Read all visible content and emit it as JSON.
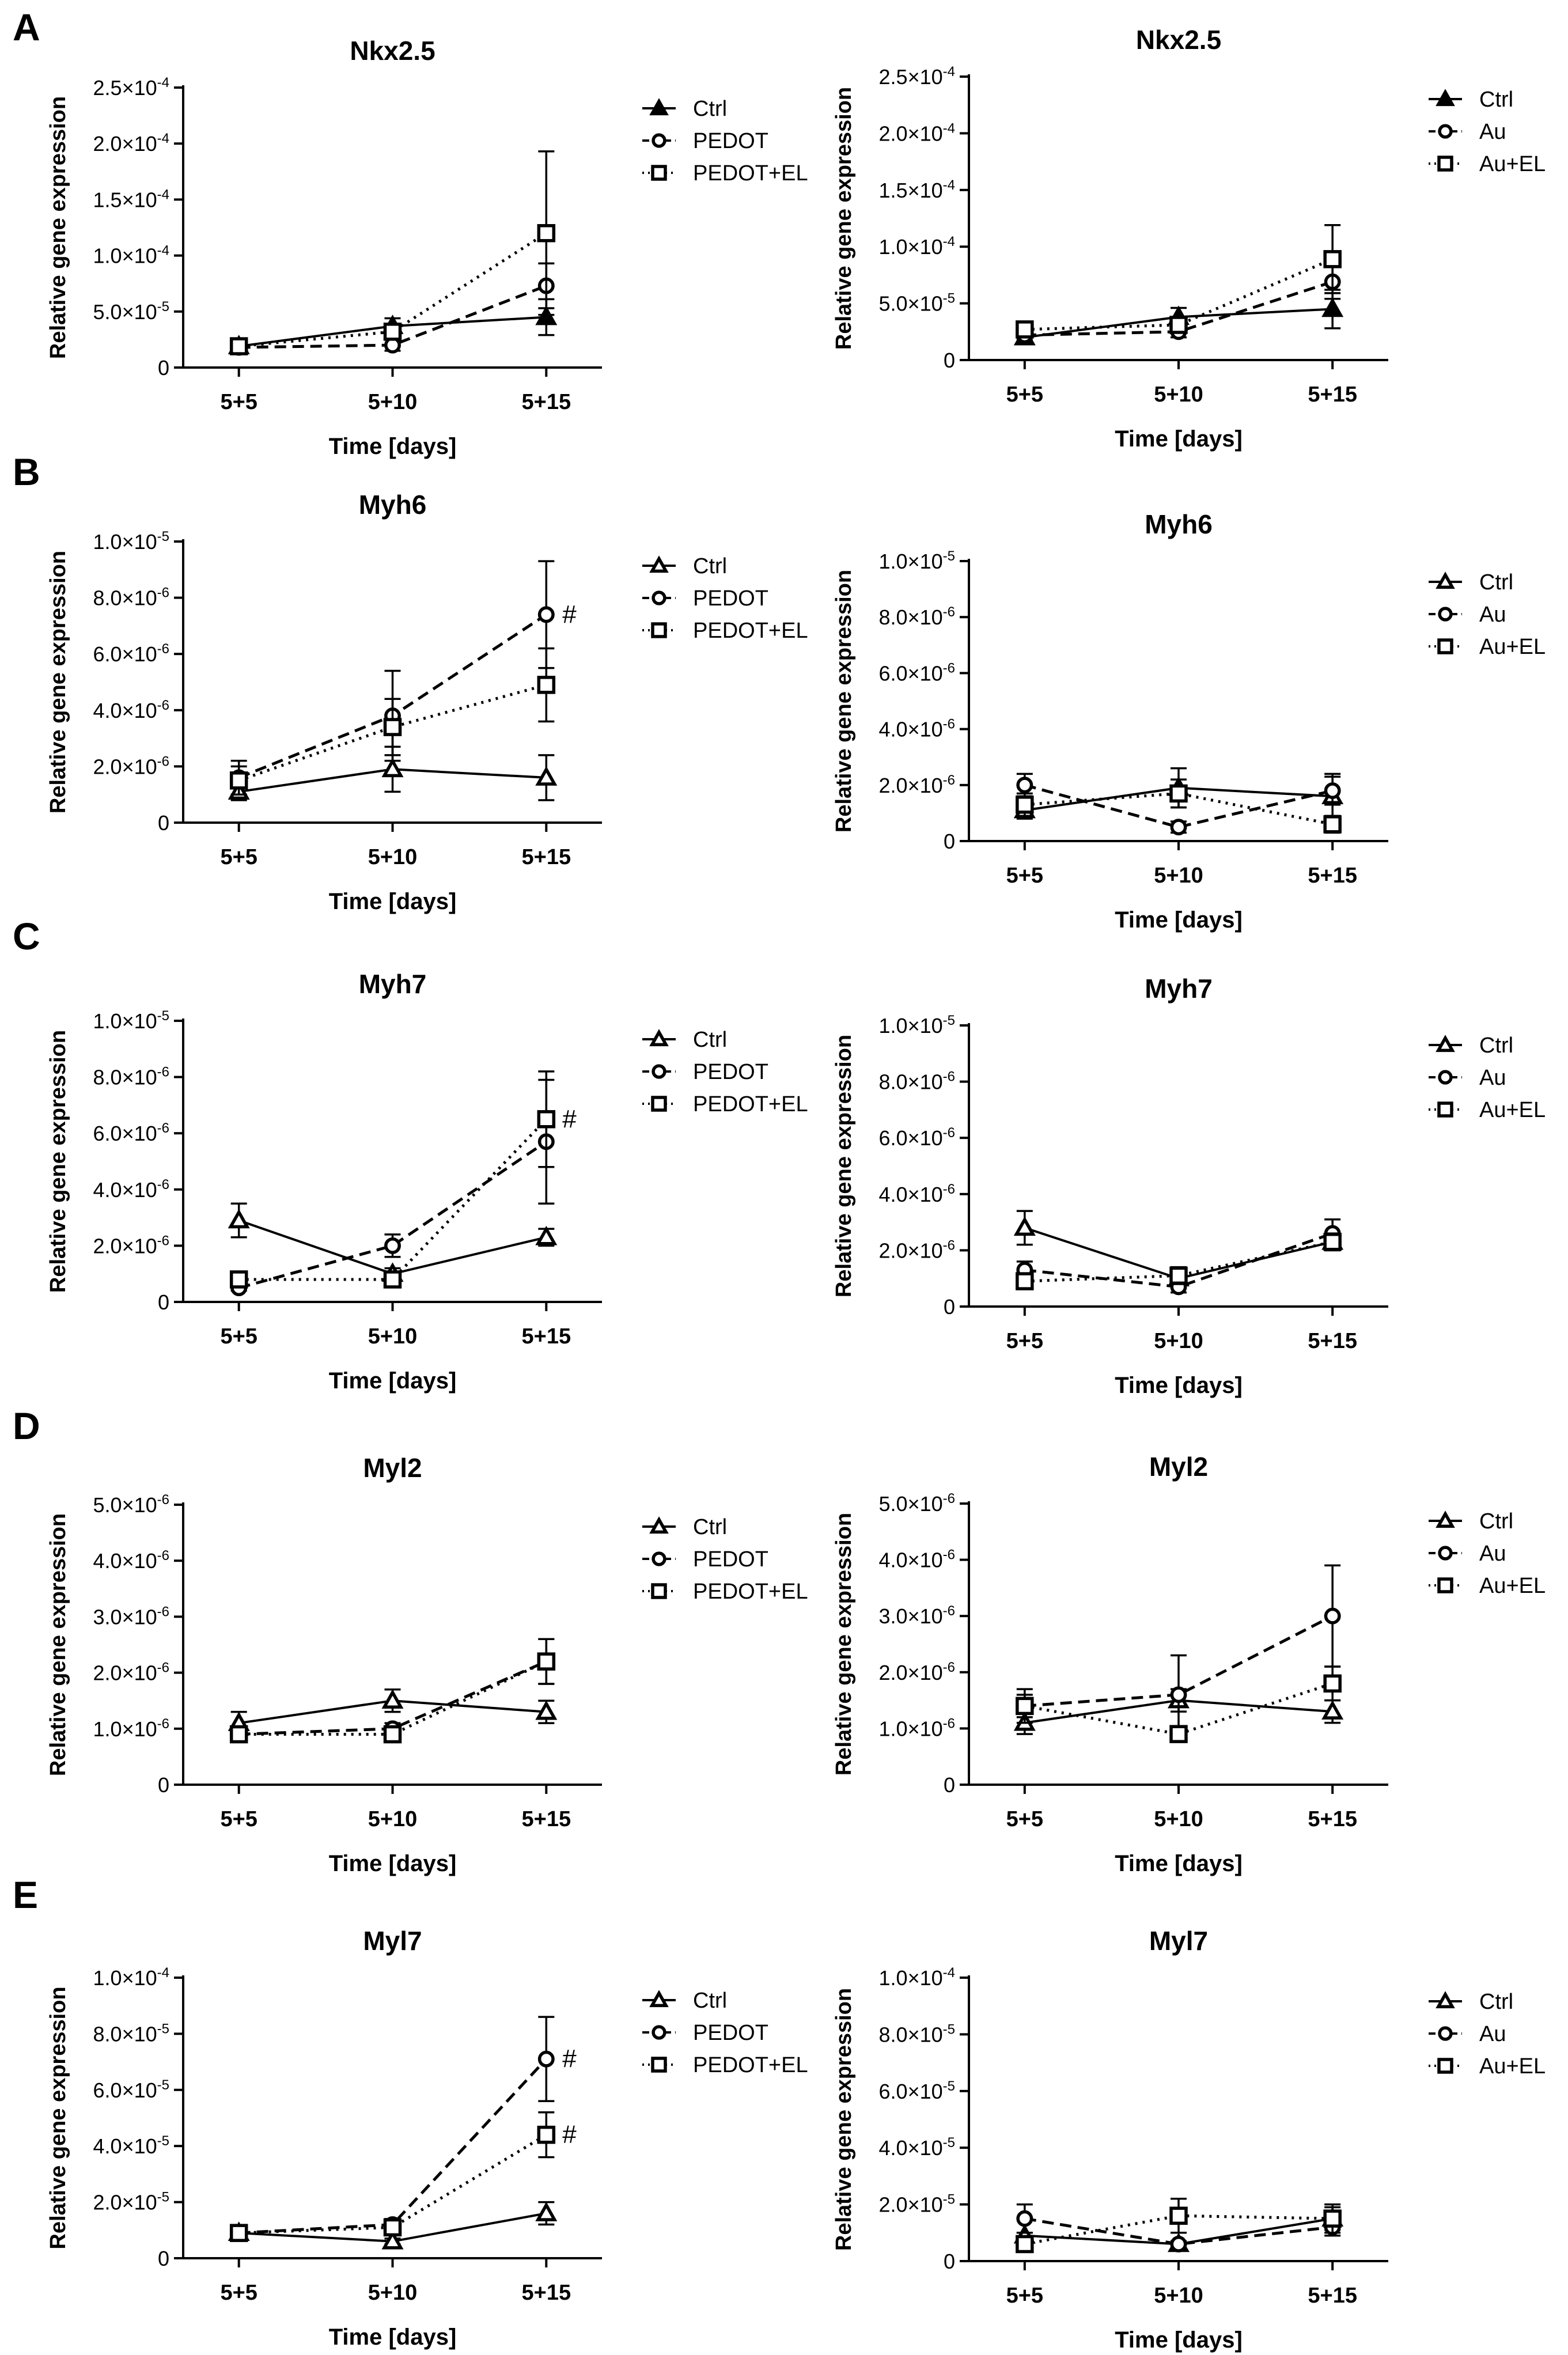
{
  "figure": {
    "x_axis_label": "Time  [days]",
    "y_axis_label": "Relative gene expression",
    "panel_letters": [
      "A",
      "B",
      "C",
      "D",
      "E"
    ],
    "colors": {
      "lines": "#000000",
      "background": "#ffffff"
    }
  },
  "chart_data": [
    {
      "id": "A-left",
      "panel": "A",
      "type": "line",
      "title": "Nkx2.5",
      "xlabel": "Time  [days]",
      "ylabel": "Relative gene expression",
      "categories": [
        "5+5",
        "5+10",
        "5+15"
      ],
      "ylim": [
        0,
        0.00025
      ],
      "yticks": [
        {
          "v": 0,
          "label": "0"
        },
        {
          "v": 5e-05,
          "m": "5.0",
          "e": "-5"
        },
        {
          "v": 0.0001,
          "m": "1.0",
          "e": "-4"
        },
        {
          "v": 0.00015,
          "m": "1.5",
          "e": "-4"
        },
        {
          "v": 0.0002,
          "m": "2.0",
          "e": "-4"
        },
        {
          "v": 0.00025,
          "m": "2.5",
          "e": "-4"
        }
      ],
      "legend": "right",
      "series": [
        {
          "name": "Ctrl",
          "marker": "triangle-filled",
          "dash": "solid",
          "values": [
            1.9e-05,
            3.7e-05,
            4.5e-05
          ],
          "errors": [
            3e-06,
            7e-06,
            1.6e-05
          ]
        },
        {
          "name": "PEDOT",
          "marker": "circle",
          "dash": "dashed",
          "values": [
            1.8e-05,
            2e-05,
            7.3e-05
          ],
          "errors": [
            2e-06,
            5e-06,
            2e-05
          ]
        },
        {
          "name": "PEDOT+EL",
          "marker": "square",
          "dash": "dotted",
          "values": [
            1.9e-05,
            3.2e-05,
            0.00012
          ],
          "errors": [
            3e-06,
            6e-06,
            7.3e-05
          ]
        }
      ]
    },
    {
      "id": "A-right",
      "panel": "A",
      "type": "line",
      "title": "Nkx2.5",
      "xlabel": "Time  [days]",
      "ylabel": "Relative gene expression",
      "categories": [
        "5+5",
        "5+10",
        "5+15"
      ],
      "ylim": [
        0,
        0.00025
      ],
      "yticks": [
        {
          "v": 0,
          "label": "0"
        },
        {
          "v": 5e-05,
          "m": "5.0",
          "e": "-5"
        },
        {
          "v": 0.0001,
          "m": "1.0",
          "e": "-4"
        },
        {
          "v": 0.00015,
          "m": "1.5",
          "e": "-4"
        },
        {
          "v": 0.0002,
          "m": "2.0",
          "e": "-4"
        },
        {
          "v": 0.00025,
          "m": "2.5",
          "e": "-4"
        }
      ],
      "legend": "right",
      "series": [
        {
          "name": "Ctrl",
          "marker": "triangle-filled",
          "dash": "solid",
          "values": [
            2e-05,
            3.8e-05,
            4.5e-05
          ],
          "errors": [
            3e-06,
            8e-06,
            1.7e-05
          ]
        },
        {
          "name": "Au",
          "marker": "circle",
          "dash": "dashed",
          "values": [
            2.2e-05,
            2.5e-05,
            6.9e-05
          ],
          "errors": [
            3e-06,
            5e-06,
            1.5e-05
          ]
        },
        {
          "name": "Au+EL",
          "marker": "square",
          "dash": "dotted",
          "values": [
            2.7e-05,
            3.1e-05,
            8.9e-05
          ],
          "errors": [
            3e-06,
            6e-06,
            3e-05
          ]
        }
      ]
    },
    {
      "id": "B-left",
      "panel": "B",
      "type": "line",
      "title": "Myh6",
      "xlabel": "Time  [days]",
      "ylabel": "Relative gene expression",
      "categories": [
        "5+5",
        "5+10",
        "5+15"
      ],
      "ylim": [
        0,
        1e-05
      ],
      "yticks": [
        {
          "v": 0,
          "label": "0"
        },
        {
          "v": 2e-06,
          "m": "2.0",
          "e": "-6"
        },
        {
          "v": 4e-06,
          "m": "4.0",
          "e": "-6"
        },
        {
          "v": 6e-06,
          "m": "6.0",
          "e": "-6"
        },
        {
          "v": 8e-06,
          "m": "8.0",
          "e": "-6"
        },
        {
          "v": 1e-05,
          "m": "1.0",
          "e": "-5"
        }
      ],
      "legend": "right",
      "series": [
        {
          "name": "Ctrl",
          "marker": "triangle-open",
          "dash": "solid",
          "values": [
            1.1e-06,
            1.9e-06,
            1.6e-06
          ],
          "errors": [
            3e-07,
            8e-07,
            8e-07
          ]
        },
        {
          "name": "PEDOT",
          "marker": "circle",
          "dash": "dashed",
          "values": [
            1.6e-06,
            3.8e-06,
            7.4e-06
          ],
          "errors": [
            6e-07,
            1.6e-06,
            1.9e-06
          ]
        },
        {
          "name": "PEDOT+EL",
          "marker": "square",
          "dash": "dotted",
          "values": [
            1.5e-06,
            3.4e-06,
            4.9e-06
          ],
          "errors": [
            5e-07,
            1e-06,
            1.3e-06
          ]
        }
      ],
      "annotations": [
        {
          "text": "#",
          "series": "PEDOT",
          "category": "5+15"
        }
      ]
    },
    {
      "id": "B-right",
      "panel": "B",
      "type": "line",
      "title": "Myh6",
      "xlabel": "Time  [days]",
      "ylabel": "Relative gene expression",
      "categories": [
        "5+5",
        "5+10",
        "5+15"
      ],
      "ylim": [
        0,
        1e-05
      ],
      "yticks": [
        {
          "v": 0,
          "label": "0"
        },
        {
          "v": 2e-06,
          "m": "2.0",
          "e": "-6"
        },
        {
          "v": 4e-06,
          "m": "4.0",
          "e": "-6"
        },
        {
          "v": 6e-06,
          "m": "6.0",
          "e": "-6"
        },
        {
          "v": 8e-06,
          "m": "8.0",
          "e": "-6"
        },
        {
          "v": 1e-05,
          "m": "1.0",
          "e": "-5"
        }
      ],
      "legend": "right",
      "series": [
        {
          "name": "Ctrl",
          "marker": "triangle-open",
          "dash": "solid",
          "values": [
            1.1e-06,
            1.9e-06,
            1.6e-06
          ],
          "errors": [
            3e-07,
            7e-07,
            8e-07
          ]
        },
        {
          "name": "Au",
          "marker": "circle",
          "dash": "dashed",
          "values": [
            2e-06,
            5e-07,
            1.8e-06
          ],
          "errors": [
            4e-07,
            2e-07,
            5e-07
          ]
        },
        {
          "name": "Au+EL",
          "marker": "square",
          "dash": "dotted",
          "values": [
            1.3e-06,
            1.7e-06,
            6e-07
          ],
          "errors": [
            4e-07,
            5e-07,
            3e-07
          ]
        }
      ]
    },
    {
      "id": "C-left",
      "panel": "C",
      "type": "line",
      "title": "Myh7",
      "xlabel": "Time  [days]",
      "ylabel": "Relative gene expression",
      "categories": [
        "5+5",
        "5+10",
        "5+15"
      ],
      "ylim": [
        0,
        1e-05
      ],
      "yticks": [
        {
          "v": 0,
          "label": "0"
        },
        {
          "v": 2e-06,
          "m": "2.0",
          "e": "-6"
        },
        {
          "v": 4e-06,
          "m": "4.0",
          "e": "-6"
        },
        {
          "v": 6e-06,
          "m": "6.0",
          "e": "-6"
        },
        {
          "v": 8e-06,
          "m": "8.0",
          "e": "-6"
        },
        {
          "v": 1e-05,
          "m": "1.0",
          "e": "-5"
        }
      ],
      "legend": "right",
      "series": [
        {
          "name": "Ctrl",
          "marker": "triangle-open",
          "dash": "solid",
          "values": [
            2.9e-06,
            1e-06,
            2.3e-06
          ],
          "errors": [
            6e-07,
            2e-07,
            3e-07
          ]
        },
        {
          "name": "PEDOT",
          "marker": "circle",
          "dash": "dashed",
          "values": [
            5e-07,
            2e-06,
            5.7e-06
          ],
          "errors": [
            1e-07,
            4e-07,
            2.2e-06
          ]
        },
        {
          "name": "PEDOT+EL",
          "marker": "square",
          "dash": "dotted",
          "values": [
            8e-07,
            8e-07,
            6.5e-06
          ],
          "errors": [
            2e-07,
            2e-07,
            1.7e-06
          ]
        }
      ],
      "annotations": [
        {
          "text": "#",
          "series": "PEDOT+EL",
          "category": "5+15"
        }
      ]
    },
    {
      "id": "C-right",
      "panel": "C",
      "type": "line",
      "title": "Myh7",
      "xlabel": "Time  [days]",
      "ylabel": "Relative gene expression",
      "categories": [
        "5+5",
        "5+10",
        "5+15"
      ],
      "ylim": [
        0,
        1e-05
      ],
      "yticks": [
        {
          "v": 0,
          "label": "0"
        },
        {
          "v": 2e-06,
          "m": "2.0",
          "e": "-6"
        },
        {
          "v": 4e-06,
          "m": "4.0",
          "e": "-6"
        },
        {
          "v": 6e-06,
          "m": "6.0",
          "e": "-6"
        },
        {
          "v": 8e-06,
          "m": "8.0",
          "e": "-6"
        },
        {
          "v": 1e-05,
          "m": "1.0",
          "e": "-5"
        }
      ],
      "legend": "right",
      "series": [
        {
          "name": "Ctrl",
          "marker": "triangle-open",
          "dash": "solid",
          "values": [
            2.8e-06,
            1e-06,
            2.3e-06
          ],
          "errors": [
            6e-07,
            2e-07,
            3e-07
          ]
        },
        {
          "name": "Au",
          "marker": "circle",
          "dash": "dashed",
          "values": [
            1.3e-06,
            7e-07,
            2.6e-06
          ],
          "errors": [
            3e-07,
            2e-07,
            5e-07
          ]
        },
        {
          "name": "Au+EL",
          "marker": "square",
          "dash": "dotted",
          "values": [
            9e-07,
            1.1e-06,
            2.3e-06
          ],
          "errors": [
            2e-07,
            3e-07,
            3e-07
          ]
        }
      ]
    },
    {
      "id": "D-left",
      "panel": "D",
      "type": "line",
      "title": "Myl2",
      "xlabel": "Time  [days]",
      "ylabel": "Relative gene expression",
      "categories": [
        "5+5",
        "5+10",
        "5+15"
      ],
      "ylim": [
        0,
        5e-06
      ],
      "yticks": [
        {
          "v": 0,
          "label": "0"
        },
        {
          "v": 1e-06,
          "m": "1.0",
          "e": "-6"
        },
        {
          "v": 2e-06,
          "m": "2.0",
          "e": "-6"
        },
        {
          "v": 3e-06,
          "m": "3.0",
          "e": "-6"
        },
        {
          "v": 4e-06,
          "m": "4.0",
          "e": "-6"
        },
        {
          "v": 5e-06,
          "m": "5.0",
          "e": "-6"
        }
      ],
      "legend": "right",
      "series": [
        {
          "name": "Ctrl",
          "marker": "triangle-open",
          "dash": "solid",
          "values": [
            1.1e-06,
            1.5e-06,
            1.3e-06
          ],
          "errors": [
            2e-07,
            2e-07,
            2e-07
          ]
        },
        {
          "name": "PEDOT",
          "marker": "circle",
          "dash": "dashed",
          "values": [
            9e-07,
            1e-06,
            2.2e-06
          ],
          "errors": [
            1e-07,
            1e-07,
            4e-07
          ]
        },
        {
          "name": "PEDOT+EL",
          "marker": "square",
          "dash": "dotted",
          "values": [
            9e-07,
            9e-07,
            2.2e-06
          ],
          "errors": [
            1e-07,
            1e-07,
            4e-07
          ]
        }
      ]
    },
    {
      "id": "D-right",
      "panel": "D",
      "type": "line",
      "title": "Myl2",
      "xlabel": "Time  [days]",
      "ylabel": "Relative gene expression",
      "categories": [
        "5+5",
        "5+10",
        "5+15"
      ],
      "ylim": [
        0,
        5e-06
      ],
      "yticks": [
        {
          "v": 0,
          "label": "0"
        },
        {
          "v": 1e-06,
          "m": "1.0",
          "e": "-6"
        },
        {
          "v": 2e-06,
          "m": "2.0",
          "e": "-6"
        },
        {
          "v": 3e-06,
          "m": "3.0",
          "e": "-6"
        },
        {
          "v": 4e-06,
          "m": "4.0",
          "e": "-6"
        },
        {
          "v": 5e-06,
          "m": "5.0",
          "e": "-6"
        }
      ],
      "legend": "right",
      "series": [
        {
          "name": "Ctrl",
          "marker": "triangle-open",
          "dash": "solid",
          "values": [
            1.1e-06,
            1.5e-06,
            1.3e-06
          ],
          "errors": [
            2e-07,
            2e-07,
            2e-07
          ]
        },
        {
          "name": "Au",
          "marker": "circle",
          "dash": "dashed",
          "values": [
            1.4e-06,
            1.6e-06,
            3e-06
          ],
          "errors": [
            3e-07,
            7e-07,
            9e-07
          ]
        },
        {
          "name": "Au+EL",
          "marker": "square",
          "dash": "dotted",
          "values": [
            1.4e-06,
            9e-07,
            1.8e-06
          ],
          "errors": [
            2e-07,
            1e-07,
            3e-07
          ]
        }
      ]
    },
    {
      "id": "E-left",
      "panel": "E",
      "type": "line",
      "title": "Myl7",
      "xlabel": "Time  [days]",
      "ylabel": "Relative gene expression",
      "categories": [
        "5+5",
        "5+10",
        "5+15"
      ],
      "ylim": [
        0,
        0.0001
      ],
      "yticks": [
        {
          "v": 0,
          "label": "0"
        },
        {
          "v": 2e-05,
          "m": "2.0",
          "e": "-5"
        },
        {
          "v": 4e-05,
          "m": "4.0",
          "e": "-5"
        },
        {
          "v": 6e-05,
          "m": "6.0",
          "e": "-5"
        },
        {
          "v": 8e-05,
          "m": "8.0",
          "e": "-5"
        },
        {
          "v": 0.0001,
          "m": "1.0",
          "e": "-4"
        }
      ],
      "legend": "right",
      "series": [
        {
          "name": "Ctrl",
          "marker": "triangle-open",
          "dash": "solid",
          "values": [
            9e-06,
            6e-06,
            1.6e-05
          ],
          "errors": [
            1e-06,
            1e-06,
            4e-06
          ]
        },
        {
          "name": "PEDOT",
          "marker": "circle",
          "dash": "dashed",
          "values": [
            9e-06,
            1.2e-05,
            7.1e-05
          ],
          "errors": [
            1e-06,
            2e-06,
            1.5e-05
          ]
        },
        {
          "name": "PEDOT+EL",
          "marker": "square",
          "dash": "dotted",
          "values": [
            9e-06,
            1.1e-05,
            4.4e-05
          ],
          "errors": [
            1e-06,
            2e-06,
            8e-06
          ]
        }
      ],
      "annotations": [
        {
          "text": "#",
          "series": "PEDOT",
          "category": "5+15"
        },
        {
          "text": "#",
          "series": "PEDOT+EL",
          "category": "5+15"
        }
      ]
    },
    {
      "id": "E-right",
      "panel": "E",
      "type": "line",
      "title": "Myl7",
      "xlabel": "Time  [days]",
      "ylabel": "Relative gene expression",
      "categories": [
        "5+5",
        "5+10",
        "5+15"
      ],
      "ylim": [
        0,
        0.0001
      ],
      "yticks": [
        {
          "v": 0,
          "label": "0"
        },
        {
          "v": 2e-05,
          "m": "2.0",
          "e": "-5"
        },
        {
          "v": 4e-05,
          "m": "4.0",
          "e": "-5"
        },
        {
          "v": 6e-05,
          "m": "6.0",
          "e": "-5"
        },
        {
          "v": 8e-05,
          "m": "8.0",
          "e": "-5"
        },
        {
          "v": 0.0001,
          "m": "1.0",
          "e": "-4"
        }
      ],
      "legend": "right",
      "series": [
        {
          "name": "Ctrl",
          "marker": "triangle-open",
          "dash": "solid",
          "values": [
            9e-06,
            6e-06,
            1.5e-05
          ],
          "errors": [
            1e-06,
            1e-06,
            4e-06
          ]
        },
        {
          "name": "Au",
          "marker": "circle",
          "dash": "dashed",
          "values": [
            1.5e-05,
            6e-06,
            1.2e-05
          ],
          "errors": [
            5e-06,
            1e-06,
            3e-06
          ]
        },
        {
          "name": "Au+EL",
          "marker": "square",
          "dash": "dotted",
          "values": [
            6e-06,
            1.6e-05,
            1.5e-05
          ],
          "errors": [
            2e-06,
            6e-06,
            5e-06
          ]
        }
      ]
    }
  ]
}
